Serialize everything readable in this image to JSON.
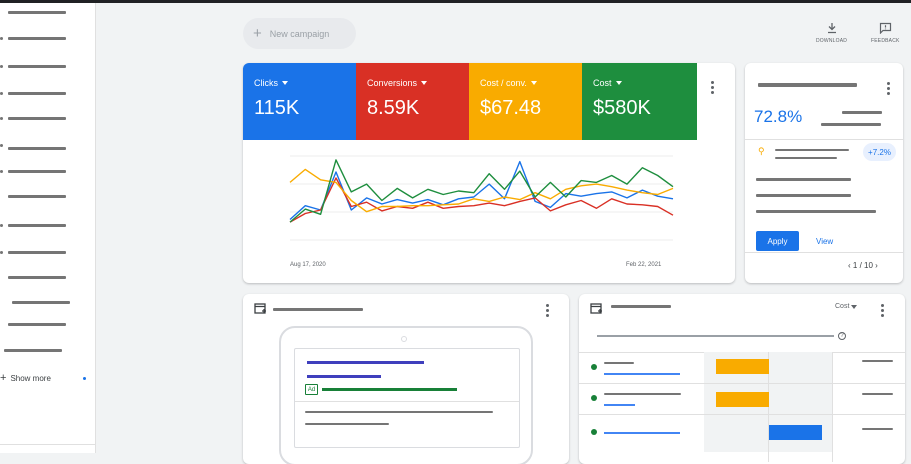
{
  "toolbar": {
    "new_campaign_label": "New campaign",
    "download_label": "DOWNLOAD",
    "feedback_label": "FEEDBACK"
  },
  "sidebar": {
    "show_more_label": "Show more"
  },
  "metrics": [
    {
      "label": "Clicks",
      "value": "115K",
      "color": "#1a73e8"
    },
    {
      "label": "Conversions",
      "value": "8.59K",
      "color": "#d93025"
    },
    {
      "label": "Cost / conv.",
      "value": "$67.48",
      "color": "#f9ab00"
    },
    {
      "label": "Cost",
      "value": "$580K",
      "color": "#1e8e3e"
    }
  ],
  "chart_data": {
    "type": "line",
    "x_start": "Aug 17, 2020",
    "x_end": "Feb 22, 2021",
    "series": [
      {
        "color": "#1a73e8",
        "values": [
          33,
          49,
          44,
          88,
          44,
          58,
          51,
          56,
          52,
          56,
          50,
          57,
          59,
          74,
          57,
          100,
          54,
          47,
          63,
          60,
          63,
          65,
          58,
          67,
          60,
          57
        ]
      },
      {
        "color": "#d93025",
        "values": [
          30,
          40,
          44,
          81,
          48,
          53,
          43,
          48,
          46,
          53,
          46,
          48,
          49,
          52,
          49,
          54,
          58,
          43,
          50,
          55,
          46,
          57,
          51,
          50,
          48,
          38
        ]
      },
      {
        "color": "#f9ab00",
        "values": [
          76,
          91,
          79,
          76,
          55,
          42,
          48,
          48,
          49,
          49,
          50,
          51,
          57,
          54,
          59,
          56,
          64,
          57,
          68,
          72,
          74,
          71,
          67,
          64,
          62,
          69
        ]
      },
      {
        "color": "#1e8e3e",
        "values": [
          30,
          45,
          39,
          102,
          65,
          74,
          55,
          69,
          58,
          68,
          62,
          66,
          64,
          86,
          68,
          89,
          59,
          76,
          59,
          78,
          76,
          84,
          74,
          93,
          84,
          71
        ]
      }
    ]
  },
  "recommendation": {
    "percent": "72.8%",
    "change": "+7.2%",
    "apply_label": "Apply",
    "view_label": "View",
    "pager": "1 / 10"
  },
  "table_card": {
    "sort_label": "Cost"
  }
}
